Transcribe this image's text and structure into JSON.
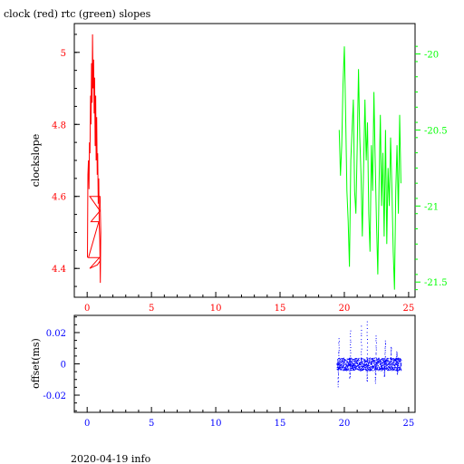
{
  "title": "clock (red) rtc (green) slopes",
  "footer": "2020-04-19 info",
  "colors": {
    "clock": "#ff0000",
    "rtc": "#00ff00",
    "offset": "#0000ff",
    "axes": "#000000"
  },
  "chart_data": [
    {
      "type": "line",
      "title": "clock (red) rtc (green) slopes",
      "xlabel": "",
      "ylabel": "clockslope",
      "xlim": [
        -1,
        25.5
      ],
      "ylim": [
        4.32,
        5.08
      ],
      "y2lim": [
        -21.6,
        -19.8
      ],
      "x_ticks": [
        "0",
        "5",
        "10",
        "15",
        "20",
        "25"
      ],
      "y_ticks": [
        "4.4",
        "4.6",
        "4.8",
        "5"
      ],
      "y2_ticks": [
        "-20",
        "-20.5",
        "-21",
        "-21.5"
      ],
      "grid": false,
      "series": [
        {
          "name": "clock",
          "axis": "left",
          "color": "#ff0000",
          "x": [
            0.02,
            0.06,
            0.1,
            0.14,
            0.18,
            0.22,
            0.26,
            0.3,
            0.34,
            0.38,
            0.42,
            0.46,
            0.5,
            0.54,
            0.58,
            0.62,
            0.66,
            0.7,
            0.74,
            0.78,
            0.82,
            0.86,
            0.9,
            0.94,
            0.98,
            1.02,
            1.06,
            1.0,
            0.2,
            0.4,
            0.6,
            0.8,
            1.0,
            0.3,
            0.9,
            0.1,
            0.95,
            0.2,
            0.8,
            0.98
          ],
          "y": [
            4.43,
            4.66,
            4.7,
            4.62,
            4.75,
            4.72,
            4.88,
            4.8,
            4.97,
            4.86,
            5.05,
            4.9,
            4.98,
            4.83,
            4.93,
            4.74,
            4.88,
            4.7,
            4.82,
            4.66,
            4.72,
            4.58,
            4.65,
            4.52,
            4.48,
            4.36,
            4.5,
            4.6,
            4.6,
            4.59,
            4.58,
            4.57,
            4.56,
            4.53,
            4.53,
            4.43,
            4.43,
            4.4,
            4.41,
            4.42
          ]
        },
        {
          "name": "rtc",
          "axis": "right",
          "color": "#00ff00",
          "x": [
            19.6,
            19.7,
            19.8,
            19.9,
            20.0,
            20.1,
            20.2,
            20.3,
            20.4,
            20.5,
            20.6,
            20.7,
            20.8,
            20.9,
            21.0,
            21.1,
            21.2,
            21.3,
            21.4,
            21.5,
            21.6,
            21.7,
            21.8,
            21.9,
            22.0,
            22.1,
            22.2,
            22.3,
            22.4,
            22.5,
            22.6,
            22.7,
            22.8,
            22.9,
            23.0,
            23.1,
            23.2,
            23.3,
            23.4,
            23.5,
            23.6,
            23.7,
            23.8,
            23.9,
            24.0,
            24.1,
            24.2,
            24.3,
            24.4
          ],
          "y": [
            -20.5,
            -20.8,
            -20.6,
            -20.2,
            -19.95,
            -20.4,
            -20.9,
            -21.1,
            -21.4,
            -20.7,
            -20.5,
            -20.3,
            -20.9,
            -21.05,
            -20.6,
            -20.1,
            -20.55,
            -20.8,
            -21.2,
            -20.75,
            -20.3,
            -20.7,
            -20.45,
            -21.05,
            -21.3,
            -20.6,
            -20.9,
            -20.25,
            -20.7,
            -21.1,
            -21.45,
            -20.85,
            -20.4,
            -21.0,
            -20.65,
            -21.2,
            -20.5,
            -21.25,
            -20.75,
            -21.0,
            -20.55,
            -20.9,
            -21.3,
            -21.55,
            -20.9,
            -20.6,
            -21.05,
            -20.4,
            -20.85
          ]
        }
      ]
    },
    {
      "type": "scatter",
      "title": "",
      "xlabel": "",
      "ylabel": "offset(ms)",
      "xlim": [
        -1,
        25.5
      ],
      "ylim": [
        -0.031,
        0.031
      ],
      "x_ticks": [
        "0",
        "5",
        "10",
        "15",
        "20",
        "25"
      ],
      "y_ticks": [
        "0.02",
        "0",
        "-0.02"
      ],
      "grid": false,
      "series": [
        {
          "name": "offset",
          "color": "#0000ff",
          "x_range": [
            19.4,
            24.4
          ],
          "band": 0.004,
          "spikes": [
            {
              "x": 19.55,
              "y": 0.016
            },
            {
              "x": 20.45,
              "y": 0.021
            },
            {
              "x": 21.3,
              "y": 0.024
            },
            {
              "x": 21.75,
              "y": 0.027
            },
            {
              "x": 22.45,
              "y": 0.018
            },
            {
              "x": 23.15,
              "y": 0.015
            },
            {
              "x": 23.6,
              "y": 0.011
            },
            {
              "x": 24.05,
              "y": 0.008
            },
            {
              "x": 19.5,
              "y": -0.014
            },
            {
              "x": 20.4,
              "y": -0.009
            },
            {
              "x": 21.75,
              "y": -0.011
            },
            {
              "x": 22.4,
              "y": -0.012
            },
            {
              "x": 23.1,
              "y": -0.008
            },
            {
              "x": 24.1,
              "y": -0.006
            }
          ]
        }
      ]
    }
  ]
}
